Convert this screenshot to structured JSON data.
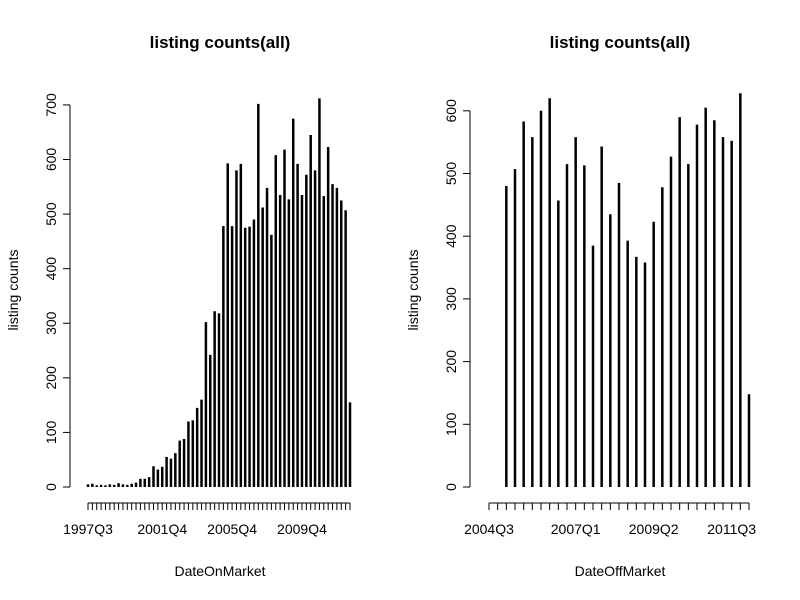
{
  "chart_data": [
    {
      "type": "bar",
      "title": "listing counts(all)",
      "xlabel": "DateOnMarket",
      "ylabel": "listing counts",
      "ylim": [
        0,
        720
      ],
      "y_ticks": [
        "0",
        "100",
        "200",
        "300",
        "400",
        "500",
        "600",
        "700"
      ],
      "x_tick_labels": [
        "1997Q3",
        "2001Q4",
        "2005Q4",
        "2009Q4"
      ],
      "x_label_positions": [
        0,
        17,
        33,
        49
      ],
      "values": [
        5,
        6,
        3,
        4,
        3,
        5,
        4,
        7,
        5,
        4,
        6,
        8,
        15,
        15,
        18,
        38,
        32,
        37,
        55,
        52,
        62,
        85,
        88,
        120,
        122,
        145,
        160,
        302,
        242,
        322,
        318,
        478,
        593,
        478,
        580,
        592,
        475,
        477,
        490,
        702,
        512,
        548,
        462,
        608,
        535,
        618,
        527,
        675,
        592,
        535,
        572,
        645,
        580,
        712,
        533,
        623,
        555,
        548,
        525,
        507,
        155
      ],
      "color": "#000000"
    },
    {
      "type": "bar",
      "title": "listing counts(all)",
      "xlabel": "DateOffMarket",
      "ylabel": "listing counts",
      "ylim": [
        0,
        630
      ],
      "y_ticks": [
        "0",
        "100",
        "200",
        "300",
        "400",
        "500",
        "600"
      ],
      "x_tick_labels": [
        "2004Q3",
        "2007Q1",
        "2009Q2",
        "2011Q3"
      ],
      "x_label_positions": [
        0,
        10,
        19,
        28
      ],
      "values": [
        0,
        0,
        480,
        507,
        583,
        558,
        600,
        620,
        457,
        515,
        558,
        513,
        385,
        543,
        435,
        485,
        393,
        367,
        358,
        423,
        478,
        527,
        590,
        515,
        578,
        605,
        585,
        558,
        552,
        628,
        148
      ],
      "color": "#000000"
    }
  ]
}
